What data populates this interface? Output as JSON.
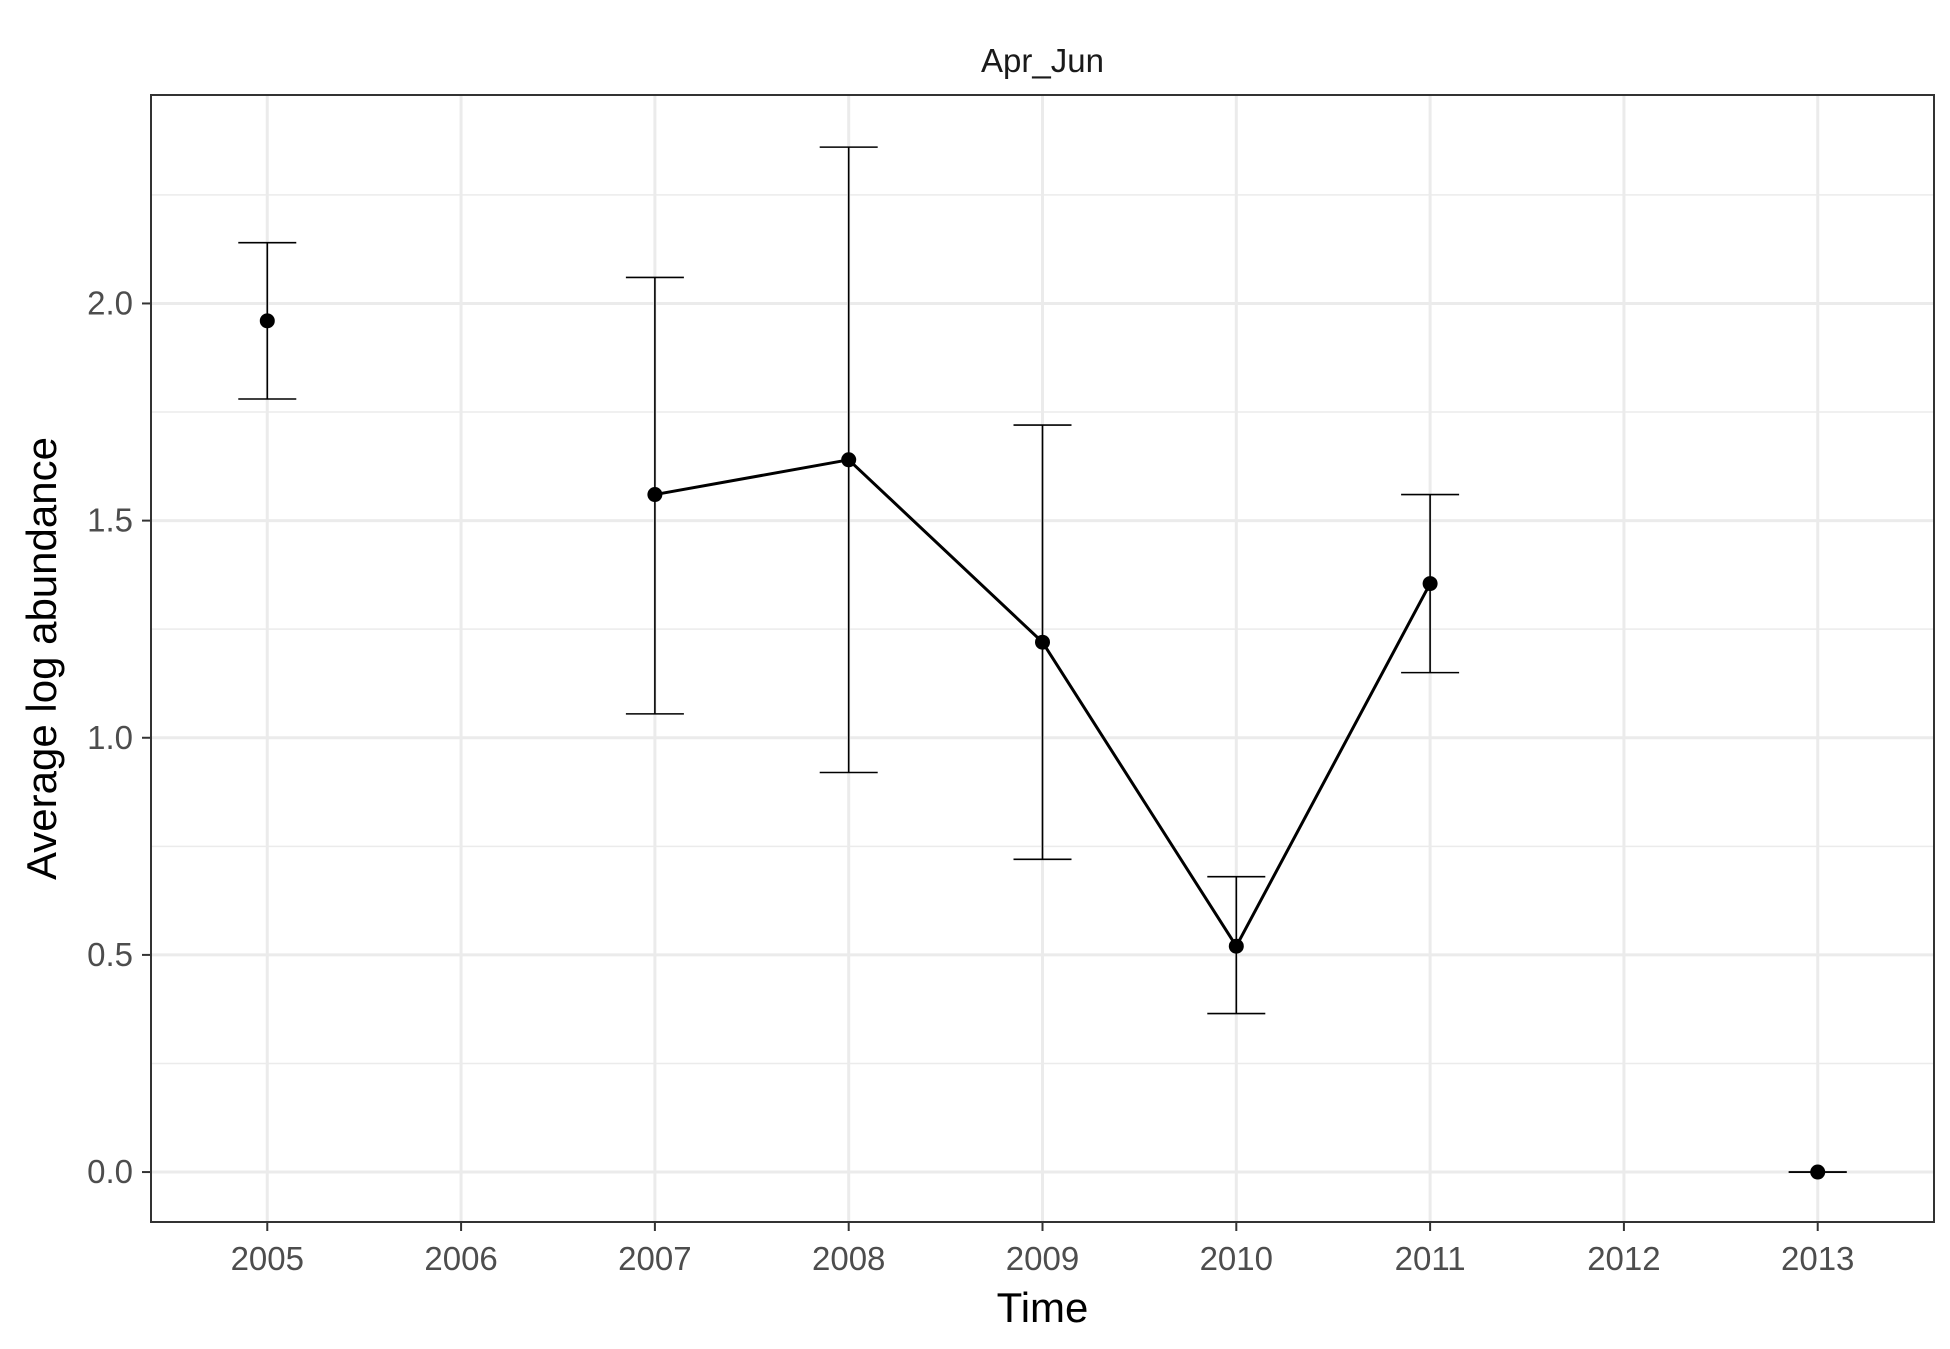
{
  "chart_data": {
    "type": "line",
    "panel_label": "Apr_Jun",
    "title": "",
    "xlabel": "Time",
    "ylabel": "Average log abundance",
    "xlim": [
      2004.4,
      2013.6
    ],
    "ylim": [
      -0.115,
      2.48
    ],
    "x_ticks": [
      2005,
      2006,
      2007,
      2008,
      2009,
      2010,
      2011,
      2012,
      2013
    ],
    "y_ticks": [
      0.0,
      0.5,
      1.0,
      1.5,
      2.0
    ],
    "y_tick_labels": [
      "0.0",
      "0.5",
      "1.0",
      "1.5",
      "2.0"
    ],
    "grid": true,
    "colors": {
      "series": "#000000",
      "grid": "#ebebeb",
      "panel_border": "#333333",
      "background": "#ffffff"
    },
    "series": [
      {
        "points": [
          {
            "x": 2005,
            "y": 1.96,
            "ymin": 1.78,
            "ymax": 2.14
          },
          {
            "x": 2007,
            "y": 1.56,
            "ymin": 1.055,
            "ymax": 2.06
          },
          {
            "x": 2008,
            "y": 1.64,
            "ymin": 0.92,
            "ymax": 2.36
          },
          {
            "x": 2009,
            "y": 1.22,
            "ymin": 0.72,
            "ymax": 1.72
          },
          {
            "x": 2010,
            "y": 0.52,
            "ymin": 0.365,
            "ymax": 0.68
          },
          {
            "x": 2011,
            "y": 1.355,
            "ymin": 1.15,
            "ymax": 1.56
          },
          {
            "x": 2013,
            "y": 0.0,
            "ymin": 0.0,
            "ymax": 0.0
          }
        ],
        "line_segments": [
          [
            2007,
            2008,
            2009,
            2010,
            2011
          ]
        ]
      }
    ]
  }
}
